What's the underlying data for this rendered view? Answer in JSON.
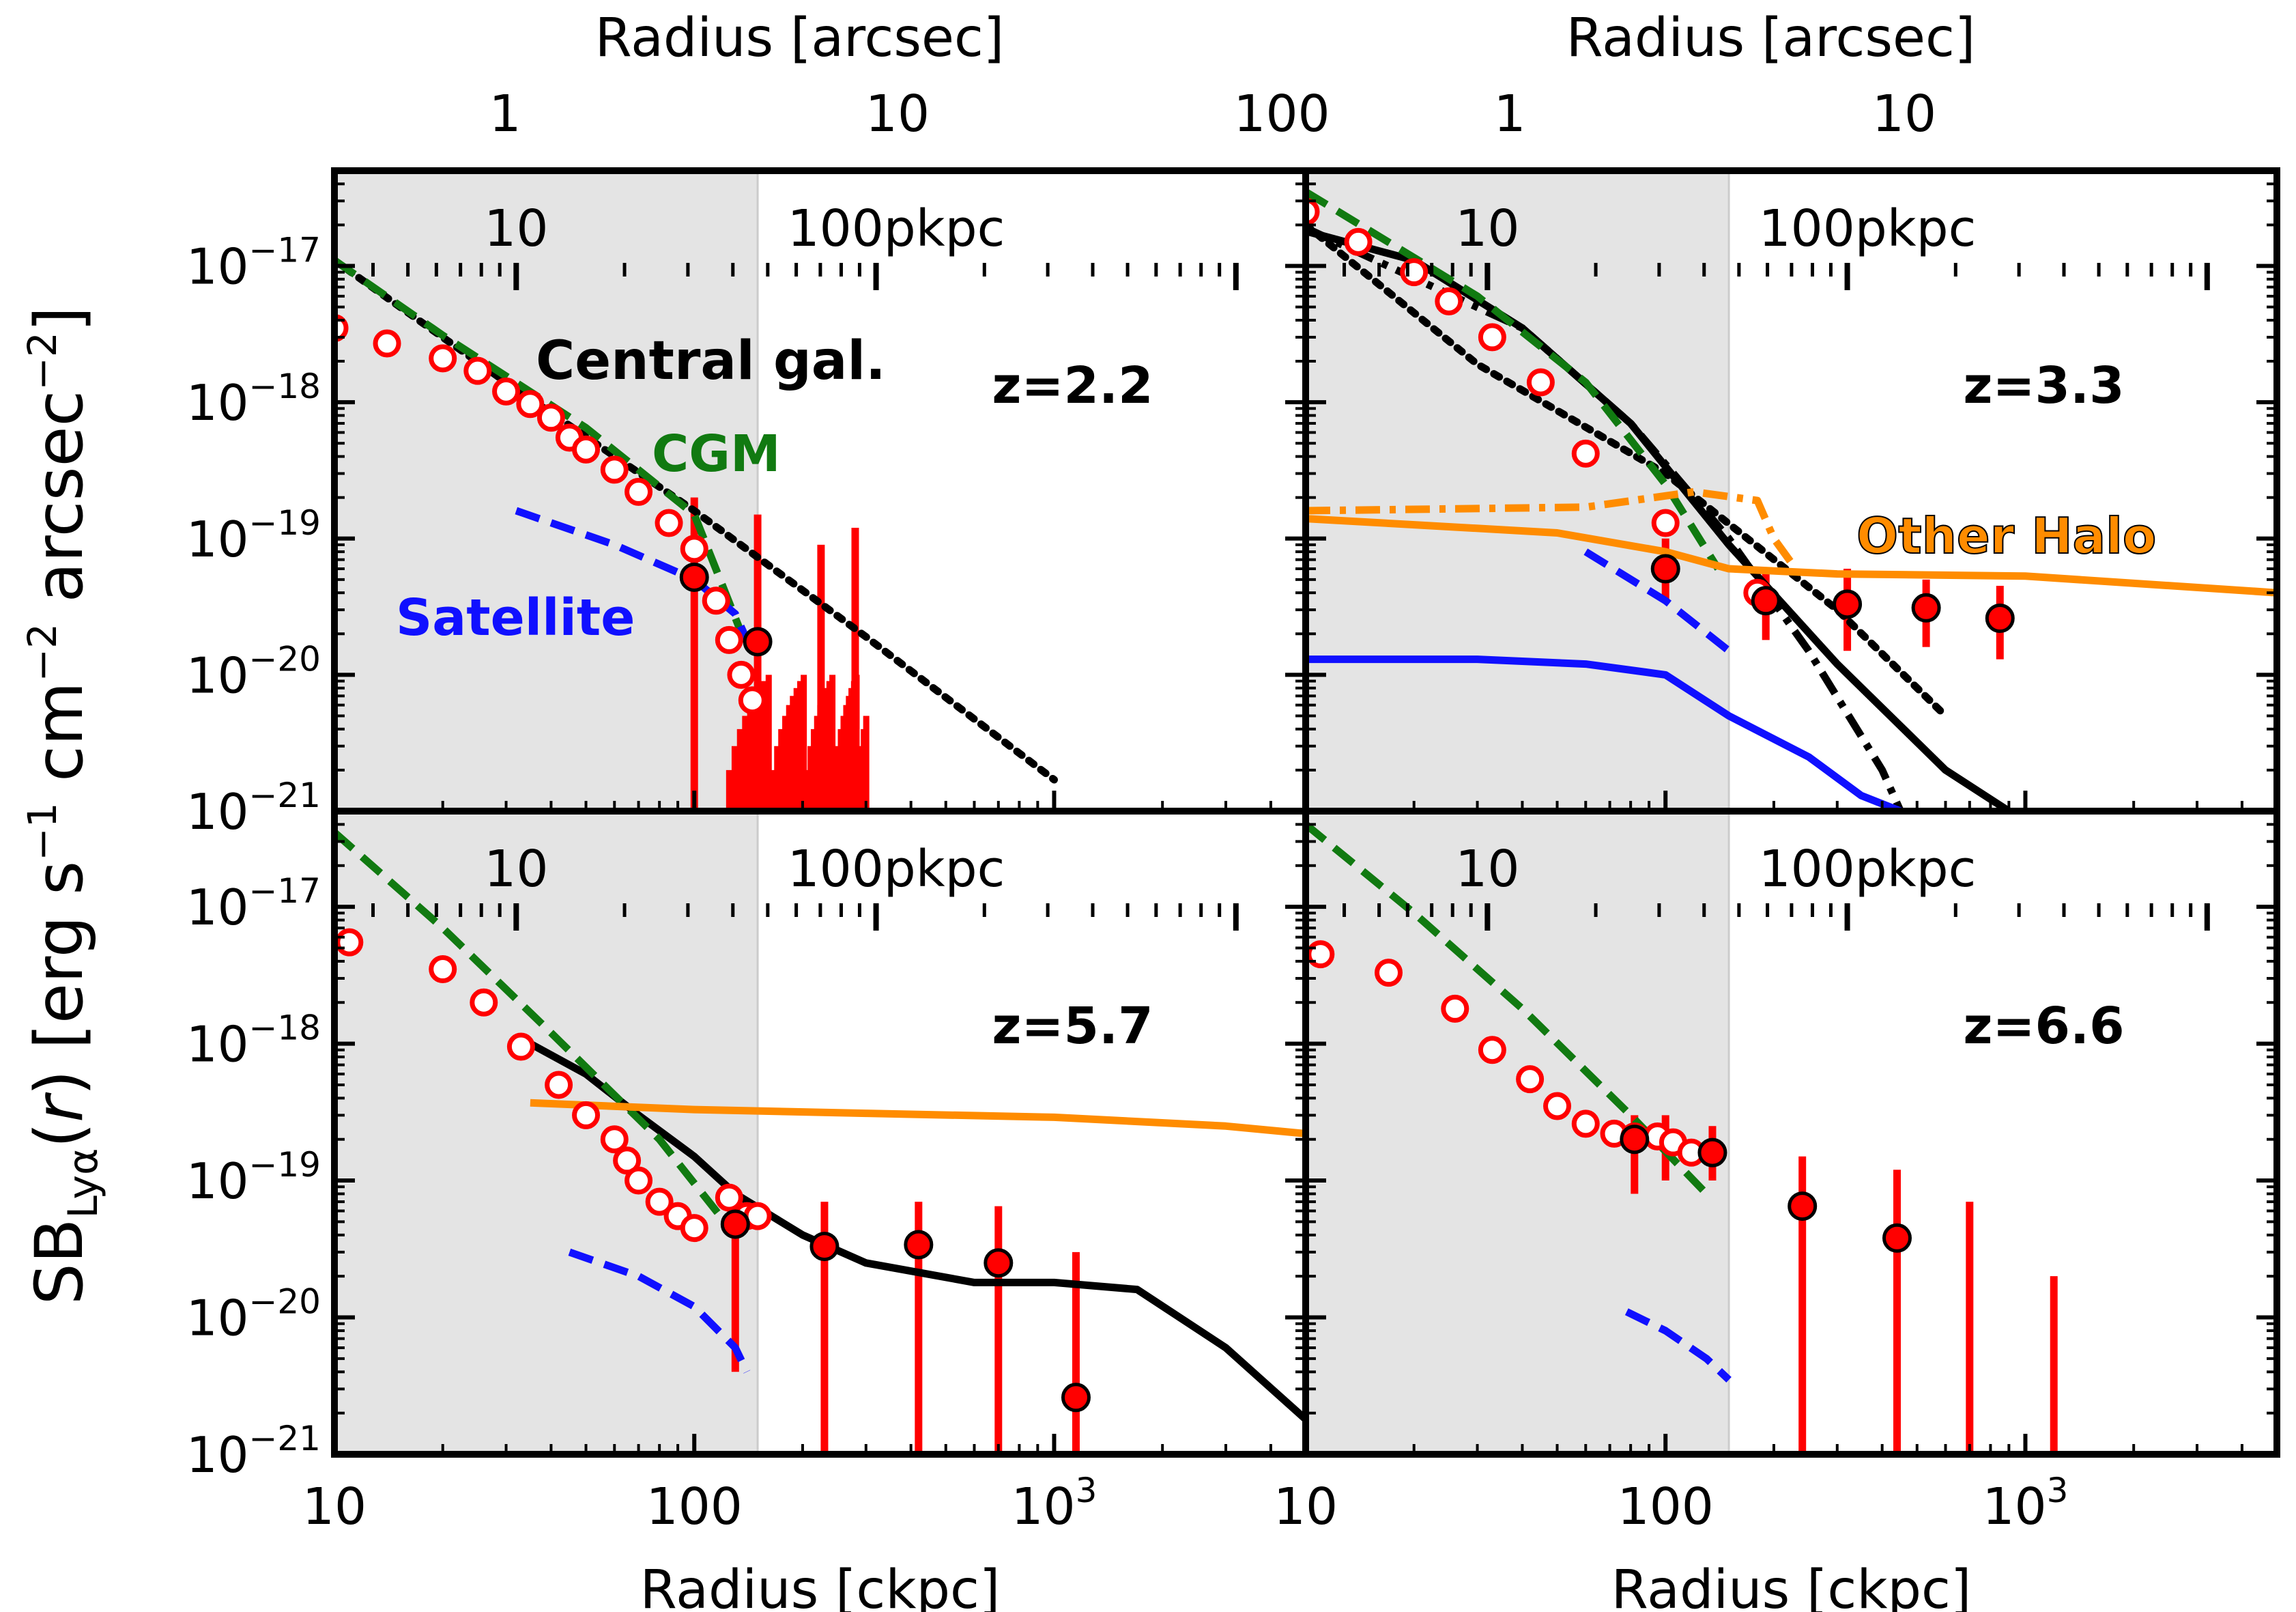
{
  "figure": {
    "ylabel_main": "SB",
    "ylabel_sub": "Lyα",
    "ylabel_mid": "(",
    "ylabel_r": "r",
    "ylabel_rest": ") [erg s",
    "ylabel_exp1": "−1",
    "ylabel_cm": " cm",
    "ylabel_exp2": "−2",
    "ylabel_arc": " arcsec",
    "ylabel_exp3": "−2",
    "ylabel_close": "]"
  },
  "colors": {
    "obs": "#ff0000",
    "central": "#000000",
    "cgm": "#117a11",
    "satellite": "#1010ff",
    "other_halo": "#ff8c00",
    "shade": "#e4e4e4"
  },
  "chart_data": [
    {
      "type": "line",
      "panel": "top-left",
      "redshift_label": "z=2.2",
      "top_axis_label": "Radius [arcsec]",
      "top_ticks": [
        "1",
        "10",
        "100"
      ],
      "inner_ticks": [
        "10",
        "100pkpc"
      ],
      "annotations": {
        "central": "Central gal.",
        "cgm": "CGM",
        "satellite": "Satellite"
      },
      "xlabel": "",
      "xlim": [
        10,
        5000
      ],
      "ylim": [
        1e-21,
        5e-17
      ],
      "xscale": "log",
      "yscale": "log",
      "shaded_region": [
        10,
        150
      ],
      "y_ticks": [
        "10−17",
        "10−18",
        "10−19",
        "10−20",
        "10−21"
      ],
      "series": [
        {
          "name": "Central galaxy (dotted)",
          "style": "dotted",
          "color": "#000000",
          "x": [
            10,
            30,
            100,
            300,
            1000
          ],
          "y": [
            1.1e-17,
            1.4e-18,
            1.6e-19,
            1.9e-20,
            1.7e-21
          ]
        },
        {
          "name": "CGM",
          "style": "dashed",
          "color": "#117a11",
          "x": [
            10,
            20,
            50,
            100,
            140
          ],
          "y": [
            1.1e-17,
            3.1e-18,
            6.5e-19,
            1.5e-19,
            1.6e-20
          ]
        },
        {
          "name": "Satellite",
          "style": "dashed",
          "color": "#1010ff",
          "x": [
            32,
            60,
            100,
            130,
            140
          ],
          "y": [
            1.6e-19,
            9e-20,
            5e-20,
            2.8e-20,
            1.8e-20
          ]
        },
        {
          "name": "Observed (open)",
          "style": "open",
          "color": "#ff0000",
          "x": [
            10,
            14,
            20,
            25,
            30,
            35,
            40,
            45,
            50,
            60,
            70,
            85,
            100,
            115,
            125,
            135,
            145
          ],
          "y": [
            3.5e-18,
            2.7e-18,
            2.1e-18,
            1.7e-18,
            1.2e-18,
            9.7e-19,
            7.7e-19,
            5.5e-19,
            4.5e-19,
            3.2e-19,
            2.2e-19,
            1.3e-19,
            8.4e-20,
            3.5e-20,
            1.8e-20,
            1e-20,
            6.5e-21
          ]
        },
        {
          "name": "Observed (filled)",
          "style": "filled",
          "color": "#ff0000",
          "x": [
            100,
            150
          ],
          "y": [
            5.2e-20,
            1.75e-20
          ]
        }
      ],
      "error_bars": [
        {
          "x": 100,
          "low": 1e-21,
          "high": 2e-19
        },
        {
          "x": 150,
          "low": 1e-21,
          "high": 1.5e-19
        },
        {
          "x": 225,
          "low": 1e-21,
          "high": 9e-20
        },
        {
          "x": 280,
          "low": 1e-21,
          "high": 1.2e-19
        }
      ]
    },
    {
      "type": "line",
      "panel": "top-right",
      "redshift_label": "z=3.3",
      "top_axis_label": "Radius [arcsec]",
      "top_ticks": [
        "1",
        "10"
      ],
      "inner_ticks": [
        "10",
        "100pkpc"
      ],
      "annotations": {
        "other_halo": "Other Halo"
      },
      "xlim": [
        10,
        5000
      ],
      "ylim": [
        1e-21,
        5e-17
      ],
      "xscale": "log",
      "yscale": "log",
      "shaded_region": [
        10,
        150
      ],
      "series": [
        {
          "name": "Central galaxy (solid)",
          "style": "solid",
          "color": "#000000",
          "x": [
            10,
            20,
            40,
            80,
            150,
            300,
            600,
            900
          ],
          "y": [
            1.8e-17,
            1.1e-17,
            3.5e-18,
            7e-19,
            9e-20,
            1.2e-20,
            2e-21,
            1e-21
          ]
        },
        {
          "name": "Central galaxy (dotted)",
          "style": "dotted",
          "color": "#000000",
          "x": [
            10,
            30,
            100,
            300,
            600
          ],
          "y": [
            2e-17,
            1.9e-18,
            3e-19,
            3e-20,
            5e-21
          ]
        },
        {
          "name": "Central galaxy (dash-dot)",
          "style": "dashdot",
          "color": "#000000",
          "x": [
            10,
            40,
            80,
            150,
            250,
            400,
            450
          ],
          "y": [
            1.9e-17,
            3.5e-18,
            7e-19,
            1e-19,
            1.5e-20,
            2e-21,
            1e-21
          ]
        },
        {
          "name": "CGM",
          "style": "dashed",
          "color": "#117a11",
          "x": [
            10,
            30,
            60,
            100,
            140
          ],
          "y": [
            3.5e-17,
            6e-18,
            1.4e-18,
            2.5e-19,
            6e-20
          ]
        },
        {
          "name": "Satellite (dashed)",
          "style": "dashed",
          "color": "#1010ff",
          "x": [
            60,
            100,
            150
          ],
          "y": [
            8e-20,
            3.5e-20,
            1.5e-20
          ]
        },
        {
          "name": "Satellite (solid)",
          "style": "solid",
          "color": "#1010ff",
          "x": [
            10,
            30,
            60,
            100,
            150,
            250,
            350,
            450
          ],
          "y": [
            1.3e-20,
            1.3e-20,
            1.2e-20,
            1e-20,
            5e-21,
            2.5e-21,
            1.3e-21,
            1e-21
          ]
        },
        {
          "name": "Other halo (solid)",
          "style": "solid",
          "color": "#ff8c00",
          "x": [
            10,
            50,
            100,
            150,
            300,
            1000,
            5000
          ],
          "y": [
            1.4e-19,
            1.1e-19,
            8e-20,
            6e-20,
            5.5e-20,
            5.3e-20,
            4e-20
          ]
        },
        {
          "name": "Other halo (dash-dot)",
          "style": "dashdot",
          "color": "#ff8c00",
          "x": [
            10,
            60,
            120,
            180,
            200,
            230
          ],
          "y": [
            1.6e-19,
            1.7e-19,
            2.2e-19,
            1.9e-19,
            1e-19,
            6e-20
          ]
        },
        {
          "name": "Observed (open)",
          "style": "open",
          "color": "#ff0000",
          "x": [
            10,
            14,
            20,
            25,
            33,
            45,
            60,
            100,
            180
          ],
          "y": [
            2.5e-17,
            1.5e-17,
            9e-18,
            5.5e-18,
            3e-18,
            1.4e-18,
            4.2e-19,
            1.3e-19,
            4e-20
          ]
        },
        {
          "name": "Observed (filled)",
          "style": "filled",
          "color": "#ff0000",
          "x": [
            100,
            190,
            320,
            530,
            850
          ],
          "y": [
            6e-20,
            3.5e-20,
            3.3e-20,
            3.1e-20,
            2.6e-20
          ]
        }
      ],
      "error_bars": [
        {
          "x": 100,
          "low": 3.5e-20,
          "high": 1e-19
        },
        {
          "x": 190,
          "low": 1.8e-20,
          "high": 6e-20
        },
        {
          "x": 320,
          "low": 1.5e-20,
          "high": 6e-20
        },
        {
          "x": 530,
          "low": 1.6e-20,
          "high": 5e-20
        },
        {
          "x": 850,
          "low": 1.3e-20,
          "high": 4.5e-20
        }
      ]
    },
    {
      "type": "line",
      "panel": "bottom-left",
      "redshift_label": "z=5.7",
      "inner_ticks": [
        "10",
        "100pkpc"
      ],
      "xlabel": "Radius [ckpc]",
      "x_ticks": [
        "10",
        "100",
        "10³"
      ],
      "xlim": [
        10,
        5000
      ],
      "ylim": [
        1e-21,
        5e-17
      ],
      "xscale": "log",
      "yscale": "log",
      "shaded_region": [
        10,
        150
      ],
      "series": [
        {
          "name": "Central galaxy (solid)",
          "style": "solid",
          "color": "#000000",
          "x": [
            35,
            50,
            70,
            100,
            130,
            200,
            300,
            600,
            1000,
            1700,
            3000,
            5000
          ],
          "y": [
            1e-18,
            6e-19,
            3e-19,
            1.5e-19,
            8e-20,
            4e-20,
            2.5e-20,
            1.8e-20,
            1.8e-20,
            1.6e-20,
            6e-21,
            1.8e-21
          ]
        },
        {
          "name": "CGM",
          "style": "dashed",
          "color": "#117a11",
          "x": [
            10,
            20,
            40,
            80,
            130
          ],
          "y": [
            3.5e-17,
            7e-18,
            1.2e-18,
            2e-19,
            4e-20
          ]
        },
        {
          "name": "Satellite",
          "style": "dashed",
          "color": "#1010ff",
          "x": [
            45,
            70,
            100,
            130,
            140
          ],
          "y": [
            3e-20,
            2e-20,
            1.2e-20,
            6e-21,
            4e-21
          ]
        },
        {
          "name": "Other halo",
          "style": "solid",
          "color": "#ff8c00",
          "x": [
            35,
            100,
            300,
            1000,
            3000,
            5000
          ],
          "y": [
            3.7e-19,
            3.3e-19,
            3.1e-19,
            2.9e-19,
            2.5e-19,
            2.2e-19
          ]
        },
        {
          "name": "Observed (open)",
          "style": "open",
          "color": "#ff0000",
          "x": [
            11,
            20,
            26,
            33,
            42,
            50,
            60,
            65,
            70,
            80,
            90,
            100,
            125,
            140,
            150
          ],
          "y": [
            5.5e-18,
            3.5e-18,
            2e-18,
            9.5e-19,
            5e-19,
            3e-19,
            2e-19,
            1.4e-19,
            1e-19,
            7e-20,
            5.5e-20,
            4.5e-20,
            7.5e-20,
            5.5e-20,
            5.5e-20
          ]
        },
        {
          "name": "Observed (filled)",
          "style": "filled",
          "color": "#ff0000",
          "x": [
            130,
            230,
            420,
            700,
            1150
          ],
          "y": [
            4.8e-20,
            3.3e-20,
            3.4e-20,
            2.5e-20,
            2.6e-21
          ]
        }
      ],
      "error_bars": [
        {
          "x": 130,
          "low": 4e-21,
          "high": 6e-20
        },
        {
          "x": 230,
          "low": 1e-21,
          "high": 7e-20
        },
        {
          "x": 420,
          "low": 1e-21,
          "high": 7e-20
        },
        {
          "x": 700,
          "low": 1e-21,
          "high": 6.5e-20
        },
        {
          "x": 1150,
          "low": 1e-21,
          "high": 3e-20
        }
      ]
    },
    {
      "type": "line",
      "panel": "bottom-right",
      "redshift_label": "z=6.6",
      "inner_ticks": [
        "10",
        "100pkpc"
      ],
      "xlabel": "Radius [ckpc]",
      "x_ticks": [
        "10",
        "100",
        "10³"
      ],
      "xlim": [
        10,
        5000
      ],
      "ylim": [
        1e-21,
        5e-17
      ],
      "xscale": "log",
      "yscale": "log",
      "shaded_region": [
        10,
        150
      ],
      "series": [
        {
          "name": "CGM",
          "style": "dashed",
          "color": "#117a11",
          "x": [
            10,
            20,
            40,
            80,
            130
          ],
          "y": [
            4e-17,
            9e-18,
            1.8e-18,
            3e-19,
            8e-20
          ]
        },
        {
          "name": "Satellite",
          "style": "dashed",
          "color": "#1010ff",
          "x": [
            78,
            100,
            130,
            150
          ],
          "y": [
            1.1e-20,
            8e-21,
            5e-21,
            3.5e-21
          ]
        },
        {
          "name": "Observed (open)",
          "style": "open",
          "color": "#ff0000",
          "x": [
            11,
            17,
            26,
            33,
            42,
            50,
            60,
            72,
            82,
            95,
            105,
            118
          ],
          "y": [
            4.5e-18,
            3.3e-18,
            1.8e-18,
            9e-19,
            5.5e-19,
            3.5e-19,
            2.6e-19,
            2.2e-19,
            2.1e-19,
            2.1e-19,
            1.9e-19,
            1.6e-19
          ]
        },
        {
          "name": "Observed (filled)",
          "style": "filled",
          "color": "#ff0000",
          "x": [
            82,
            135,
            240,
            440
          ],
          "y": [
            2e-19,
            1.6e-19,
            6.5e-20,
            3.8e-20
          ]
        }
      ],
      "error_bars": [
        {
          "x": 82,
          "low": 8e-20,
          "high": 3e-19
        },
        {
          "x": 100,
          "low": 1e-19,
          "high": 3e-19
        },
        {
          "x": 135,
          "low": 1e-19,
          "high": 2.5e-19
        },
        {
          "x": 240,
          "low": 1e-21,
          "high": 1.5e-19
        },
        {
          "x": 440,
          "low": 1e-21,
          "high": 1.2e-19
        },
        {
          "x": 700,
          "low": 1e-21,
          "high": 7e-20
        },
        {
          "x": 1200,
          "low": 1e-21,
          "high": 2e-20
        }
      ]
    }
  ]
}
